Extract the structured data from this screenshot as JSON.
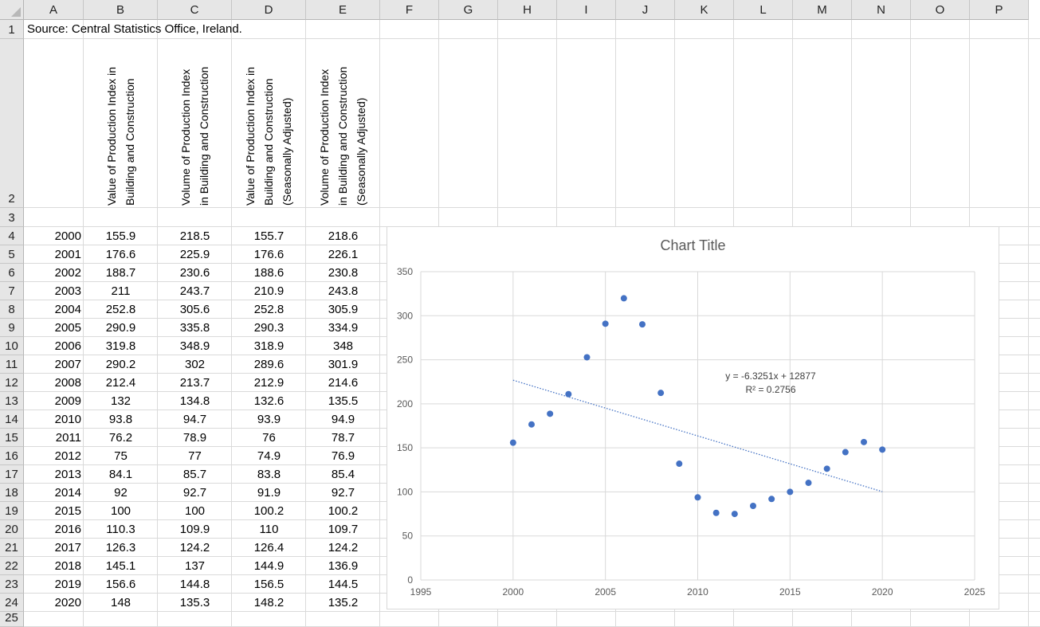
{
  "sheet": {
    "columns": [
      "A",
      "B",
      "C",
      "D",
      "E",
      "F",
      "G",
      "H",
      "I",
      "J",
      "K",
      "L",
      "M",
      "N",
      "O",
      "P"
    ],
    "rows": [
      "1",
      "2",
      "3",
      "4",
      "5",
      "6",
      "7",
      "8",
      "9",
      "10",
      "11",
      "12",
      "13",
      "14",
      "15",
      "16",
      "17",
      "18",
      "19",
      "20",
      "21",
      "22",
      "23",
      "24",
      "25"
    ],
    "source_note": "Source: Central Statistics Office, Ireland.",
    "headers": [
      [
        "Value of Production Index in",
        "Building and Construction"
      ],
      [
        "Volume of Production Index",
        "in Building and Construction"
      ],
      [
        "Value of Production Index in",
        "Building and Construction",
        "(Seasonally Adjusted)"
      ],
      [
        "Volume of Production Index",
        "in Building and Construction",
        "(Seasonally Adjusted)"
      ]
    ],
    "data": [
      [
        "2000",
        "155.9",
        "218.5",
        "155.7",
        "218.6"
      ],
      [
        "2001",
        "176.6",
        "225.9",
        "176.6",
        "226.1"
      ],
      [
        "2002",
        "188.7",
        "230.6",
        "188.6",
        "230.8"
      ],
      [
        "2003",
        "211",
        "243.7",
        "210.9",
        "243.8"
      ],
      [
        "2004",
        "252.8",
        "305.6",
        "252.8",
        "305.9"
      ],
      [
        "2005",
        "290.9",
        "335.8",
        "290.3",
        "334.9"
      ],
      [
        "2006",
        "319.8",
        "348.9",
        "318.9",
        "348"
      ],
      [
        "2007",
        "290.2",
        "302",
        "289.6",
        "301.9"
      ],
      [
        "2008",
        "212.4",
        "213.7",
        "212.9",
        "214.6"
      ],
      [
        "2009",
        "132",
        "134.8",
        "132.6",
        "135.5"
      ],
      [
        "2010",
        "93.8",
        "94.7",
        "93.9",
        "94.9"
      ],
      [
        "2011",
        "76.2",
        "78.9",
        "76",
        "78.7"
      ],
      [
        "2012",
        "75",
        "77",
        "74.9",
        "76.9"
      ],
      [
        "2013",
        "84.1",
        "85.7",
        "83.8",
        "85.4"
      ],
      [
        "2014",
        "92",
        "92.7",
        "91.9",
        "92.7"
      ],
      [
        "2015",
        "100",
        "100",
        "100.2",
        "100.2"
      ],
      [
        "2016",
        "110.3",
        "109.9",
        "110",
        "109.7"
      ],
      [
        "2017",
        "126.3",
        "124.2",
        "126.4",
        "124.2"
      ],
      [
        "2018",
        "145.1",
        "137",
        "144.9",
        "136.9"
      ],
      [
        "2019",
        "156.6",
        "144.8",
        "156.5",
        "144.5"
      ],
      [
        "2020",
        "148",
        "135.3",
        "148.2",
        "135.2"
      ]
    ]
  },
  "chart_data": {
    "type": "scatter",
    "title": "Chart Title",
    "x": [
      2000,
      2001,
      2002,
      2003,
      2004,
      2005,
      2006,
      2007,
      2008,
      2009,
      2010,
      2011,
      2012,
      2013,
      2014,
      2015,
      2016,
      2017,
      2018,
      2019,
      2020
    ],
    "y": [
      155.9,
      176.6,
      188.7,
      211,
      252.8,
      290.9,
      319.8,
      290.2,
      212.4,
      132,
      93.8,
      76.2,
      75,
      84.1,
      92,
      100,
      110.3,
      126.3,
      145.1,
      156.6,
      148
    ],
    "xlim": [
      1995,
      2025
    ],
    "ylim": [
      0,
      350
    ],
    "xticks": [
      "1995",
      "2000",
      "2005",
      "2010",
      "2015",
      "2020",
      "2025"
    ],
    "yticks": [
      "0",
      "50",
      "100",
      "150",
      "200",
      "250",
      "300",
      "350"
    ],
    "grid": true,
    "marker_color": "#4472c4",
    "trendline": {
      "type": "linear",
      "slope": -6.3251,
      "intercept": 12877,
      "x_range": [
        2000,
        2020
      ],
      "equation": "y = -6.3251x + 12877",
      "r_squared": "R² = 0.2756"
    }
  }
}
